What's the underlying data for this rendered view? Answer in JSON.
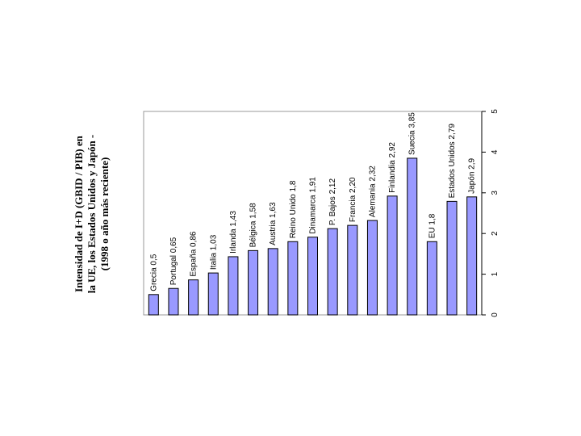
{
  "chart_data": {
    "type": "bar",
    "title": [
      "Intensidad de I+D (GBID / PIB) en",
      "la UE, los Estados Unidos y Japón -",
      "(1998 o año más reciente)"
    ],
    "categories": [
      "Grecia 0,5",
      "Portugal 0,65",
      "España 0,86",
      "Italia 1,03",
      "Irlanda 1,43",
      "Bélgica 1,58",
      "Austria 1,63",
      "Reino Unido 1,8",
      "Dinamarca 1,91",
      "P. Bajos 2,12",
      "Francia 2,20",
      "Alemania 2,32",
      "Finlandia 2,92",
      "Suecia 3,85",
      "EU 1,8",
      "Estados Unidos 2,79",
      "Japón 2,9"
    ],
    "values": [
      0.5,
      0.65,
      0.86,
      1.03,
      1.43,
      1.58,
      1.63,
      1.8,
      1.91,
      2.12,
      2.2,
      2.32,
      2.92,
      3.85,
      1.8,
      2.79,
      2.9
    ],
    "color": "#9999ff",
    "ylim": [
      0,
      5
    ],
    "yticks": [
      0,
      1,
      2,
      3,
      4,
      5
    ]
  }
}
